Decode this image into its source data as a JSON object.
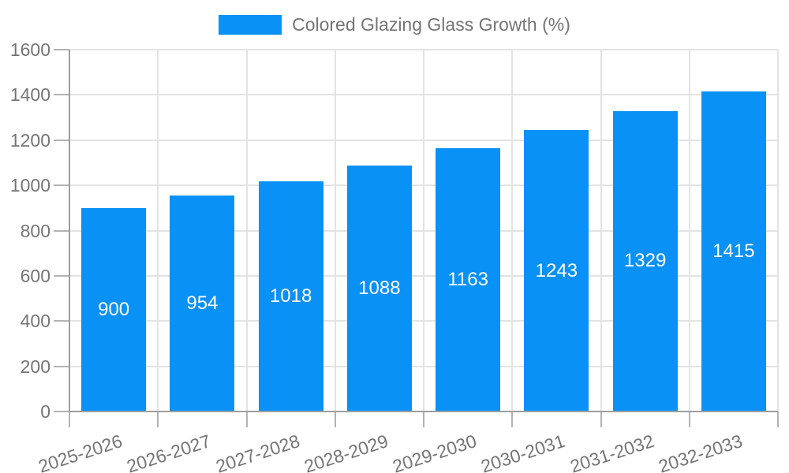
{
  "chart_data": {
    "type": "bar",
    "legend_label": "Colored Glazing Glass Growth (%)",
    "legend_position": "top",
    "categories": [
      "2025-2026",
      "2026-2027",
      "2027-2028",
      "2028-2029",
      "2029-2030",
      "2030-2031",
      "2031-2032",
      "2032-2033"
    ],
    "series": [
      {
        "name": "Colored Glazing Glass Growth (%)",
        "values": [
          900,
          954,
          1018,
          1088,
          1163,
          1243,
          1329,
          1415
        ]
      }
    ],
    "value_labels": [
      "900",
      "954",
      "1018",
      "1088",
      "1163",
      "1243",
      "1329",
      "1415"
    ],
    "ylim": [
      0,
      1600
    ],
    "yticks": [
      0,
      200,
      400,
      600,
      800,
      1000,
      1200,
      1400,
      1600
    ],
    "grid": true,
    "colors": {
      "bar": "#0991f5",
      "value_label": "#ffffff",
      "axis_text": "#757575",
      "grid_line": "#e3e3e3",
      "axis_line": "#9e9e9e",
      "tick_mark": "#b3b3b3",
      "background": "#ffffff"
    }
  }
}
